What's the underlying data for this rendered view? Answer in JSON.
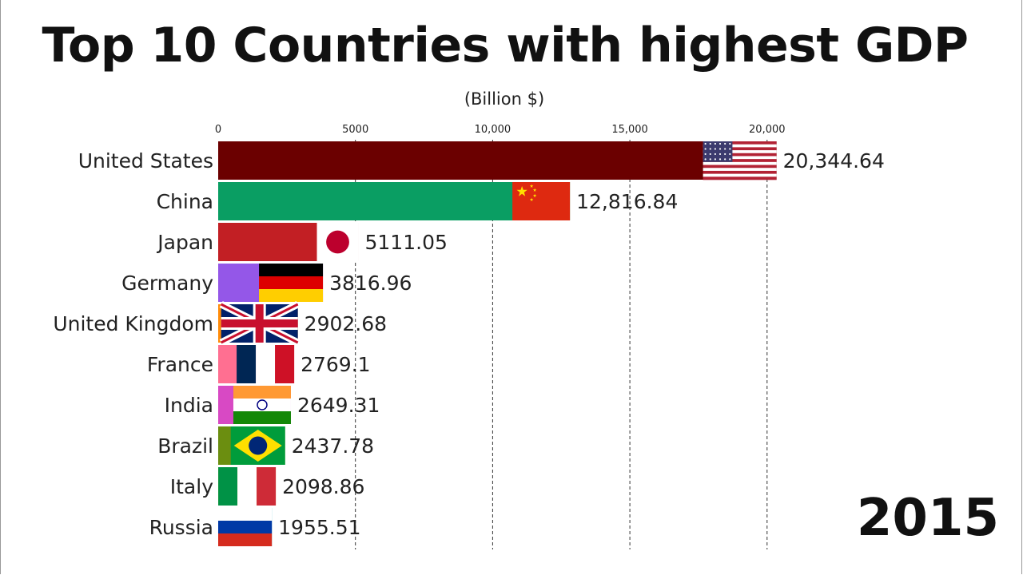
{
  "title": "Top 10 Countries with highest GDP",
  "unit_label": "(Billion $)",
  "year": "2015",
  "chart_data": {
    "type": "bar",
    "orientation": "horizontal",
    "title": "Top 10 Countries with highest GDP",
    "xlabel": "(Billion $)",
    "ylabel": "",
    "xlim": [
      0,
      21200
    ],
    "x_ticks": [
      0,
      5000,
      10000,
      15000,
      20000
    ],
    "x_tick_labels": [
      "0",
      "5000",
      "10,000",
      "15,000",
      "20,000"
    ],
    "grid": "vertical dashed",
    "categories": [
      "United States",
      "China",
      "Japan",
      "Germany",
      "United Kingdom",
      "France",
      "India",
      "Brazil",
      "Italy",
      "Russia"
    ],
    "values": [
      20344.64,
      12816.84,
      5111.05,
      3816.96,
      2902.68,
      2769.1,
      2649.31,
      2437.78,
      2098.86,
      1955.51
    ],
    "value_labels": [
      "20,344.64",
      "12,816.84",
      "5111.05",
      "3816.96",
      "2902.68",
      "2769.1",
      "2649.31",
      "2437.78",
      "2098.86",
      "1955.51"
    ],
    "bar_colors": [
      "#6b0000",
      "#0a9e63",
      "#c21f24",
      "#9457e8",
      "#ff8c0a",
      "#ff6f91",
      "#d849c4",
      "#6b8e10",
      "#f0c419",
      "#1aa0b8"
    ],
    "flags": [
      "us-flag-icon",
      "china-flag-icon",
      "japan-flag-icon",
      "germany-flag-icon",
      "uk-flag-icon",
      "france-flag-icon",
      "india-flag-icon",
      "brazil-flag-icon",
      "italy-flag-icon",
      "russia-flag-icon"
    ]
  }
}
